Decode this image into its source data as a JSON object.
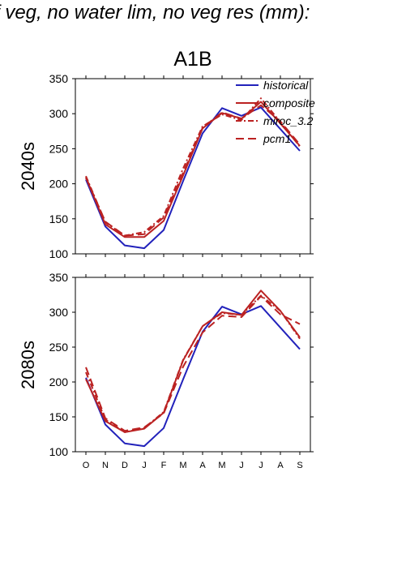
{
  "page_title": "f veg, no water lim, no veg res (mm):",
  "scenario": "A1B",
  "chart_data": [
    {
      "type": "line",
      "row_label": "2040s",
      "categories": [
        "O",
        "N",
        "D",
        "J",
        "F",
        "M",
        "A",
        "M",
        "J",
        "J",
        "A",
        "S"
      ],
      "ylim": [
        100,
        350
      ],
      "yticks": [
        100,
        150,
        200,
        250,
        300,
        350
      ],
      "legend_position": "top-right",
      "series": [
        {
          "name": "historical",
          "color": "#2222bb",
          "dash": "solid",
          "values": [
            206,
            139,
            112,
            108,
            134,
            204,
            272,
            308,
            297,
            309,
            278,
            247
          ]
        },
        {
          "name": "composite",
          "color": "#bb2222",
          "dash": "solid",
          "values": [
            209,
            142,
            124,
            124,
            147,
            212,
            279,
            301,
            293,
            317,
            286,
            254
          ]
        },
        {
          "name": "miroc_3.2",
          "color": "#bb2222",
          "dash": "dashdot",
          "values": [
            211,
            145,
            126,
            131,
            154,
            222,
            282,
            299,
            291,
            322,
            288,
            253
          ]
        },
        {
          "name": "pcm1",
          "color": "#bb2222",
          "dash": "longdash",
          "values": [
            209,
            146,
            126,
            128,
            152,
            216,
            280,
            302,
            293,
            312,
            289,
            256
          ]
        }
      ]
    },
    {
      "type": "line",
      "row_label": "2080s",
      "categories": [
        "O",
        "N",
        "D",
        "J",
        "F",
        "M",
        "A",
        "M",
        "J",
        "J",
        "A",
        "S"
      ],
      "ylim": [
        100,
        350
      ],
      "yticks": [
        100,
        150,
        200,
        250,
        300,
        350
      ],
      "series": [
        {
          "name": "historical",
          "color": "#2222bb",
          "dash": "solid",
          "values": [
            206,
            139,
            112,
            108,
            134,
            204,
            272,
            308,
            297,
            309,
            278,
            247
          ]
        },
        {
          "name": "composite",
          "color": "#bb2222",
          "dash": "solid",
          "values": [
            204,
            144,
            128,
            133,
            156,
            231,
            280,
            300,
            296,
            331,
            302,
            264
          ]
        },
        {
          "name": "miroc_3.2",
          "color": "#bb2222",
          "dash": "dashdot",
          "values": [
            214,
            146,
            128,
            134,
            157,
            232,
            280,
            299,
            296,
            324,
            302,
            262
          ]
        },
        {
          "name": "pcm1",
          "color": "#bb2222",
          "dash": "longdash",
          "values": [
            221,
            148,
            130,
            135,
            155,
            222,
            271,
            295,
            293,
            323,
            297,
            283
          ]
        }
      ]
    }
  ]
}
